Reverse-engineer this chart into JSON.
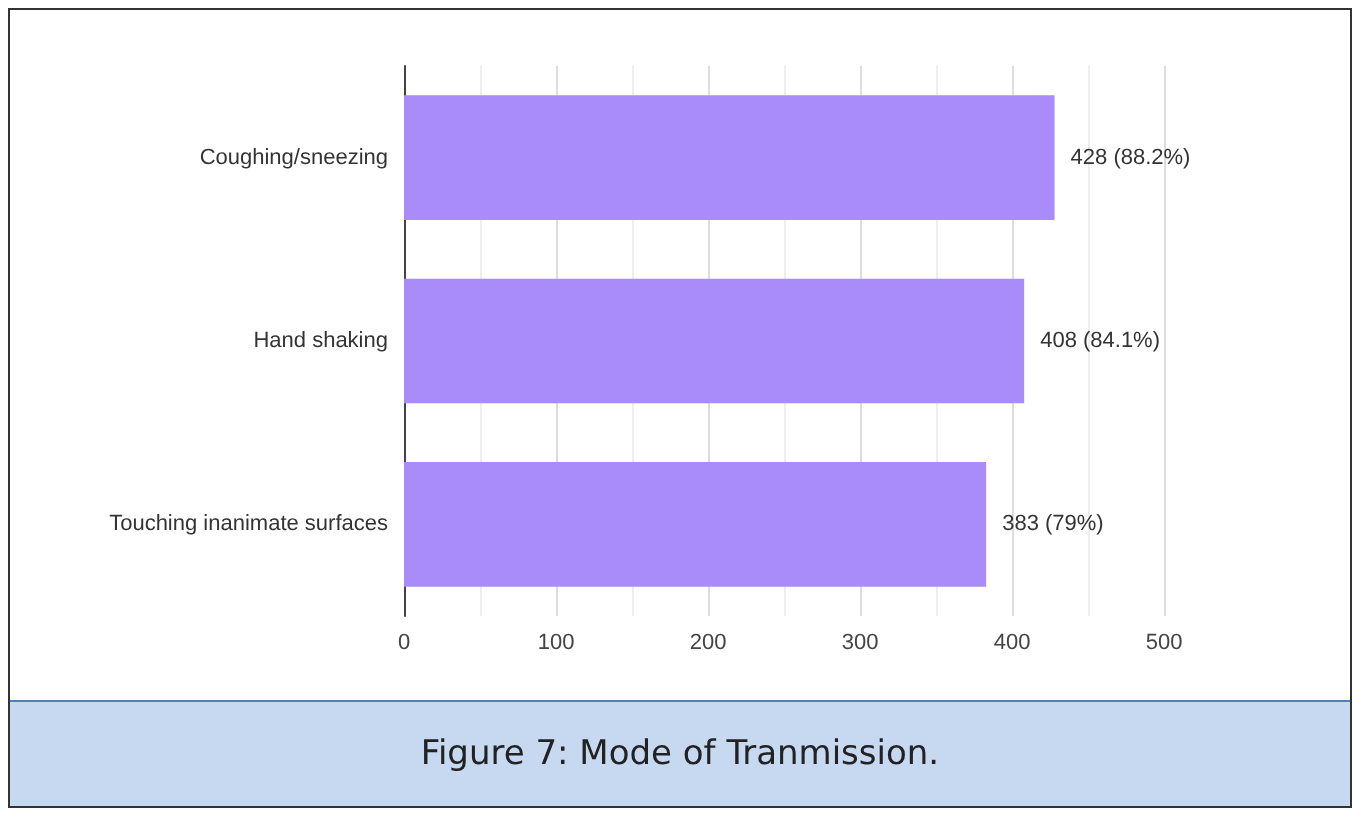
{
  "chart_data": {
    "type": "bar",
    "orientation": "horizontal",
    "categories": [
      "Coughing/sneezing",
      "Hand shaking",
      "Touching inanimate surfaces"
    ],
    "values": [
      428,
      408,
      383
    ],
    "color": "#a98bf9",
    "value_labels": [
      "428 (88.2%)",
      "408 (84.1%)",
      "383 (79%)"
    ],
    "xlim": [
      0,
      500
    ],
    "xticks": [
      0,
      100,
      200,
      300,
      400,
      500
    ],
    "grid": "x",
    "annotations": [
      "Figure 7: Mode of Tranmission."
    ]
  }
}
